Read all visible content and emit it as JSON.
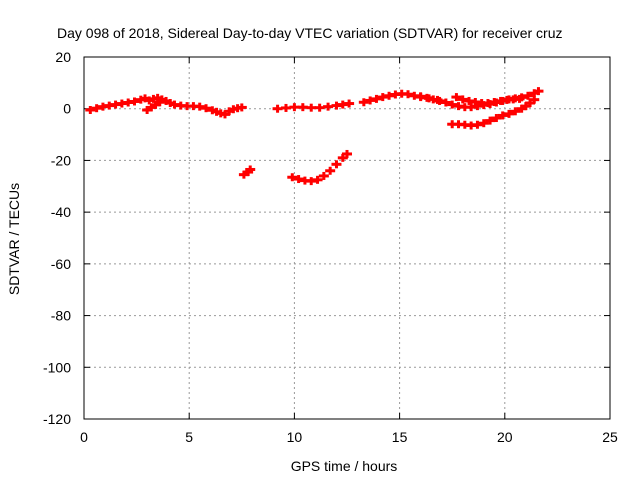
{
  "chart_data": {
    "type": "scatter",
    "title": "Day 098 of 2018, Sidereal Day-to-day VTEC variation (SDTVAR) for receiver cruz",
    "xlabel": "GPS time / hours",
    "ylabel": "SDTVAR / TECUs",
    "xlim": [
      0,
      25
    ],
    "ylim": [
      -120,
      20
    ],
    "xticks": [
      "0",
      "5",
      "10",
      "15",
      "20",
      "25"
    ],
    "yticks": [
      "20",
      "0",
      "-20",
      "-40",
      "-60",
      "-80",
      "-100",
      "-120"
    ],
    "grid": true,
    "marker_color": "#ff0000",
    "series": [
      {
        "points": [
          [
            0.3,
            -0.5
          ],
          [
            0.6,
            0.2
          ],
          [
            0.9,
            0.8
          ],
          [
            1.2,
            1.2
          ],
          [
            1.5,
            1.6
          ],
          [
            1.8,
            2.0
          ],
          [
            2.1,
            2.4
          ],
          [
            2.4,
            2.8
          ],
          [
            2.7,
            3.5
          ],
          [
            2.9,
            4.0
          ],
          [
            3.1,
            3.2
          ],
          [
            3.3,
            3.8
          ],
          [
            3.5,
            4.2
          ],
          [
            3.7,
            3.6
          ],
          [
            3.9,
            3.0
          ],
          [
            4.1,
            2.2
          ],
          [
            4.3,
            1.6
          ],
          [
            4.6,
            1.2
          ],
          [
            4.9,
            1.0
          ],
          [
            5.2,
            1.0
          ],
          [
            5.5,
            0.8
          ],
          [
            5.8,
            0.2
          ],
          [
            6.1,
            -0.6
          ],
          [
            6.3,
            -1.2
          ],
          [
            6.5,
            -1.8
          ],
          [
            6.7,
            -2.2
          ],
          [
            6.9,
            -1.0
          ],
          [
            7.1,
            -0.2
          ],
          [
            7.3,
            0.2
          ],
          [
            7.5,
            0.5
          ],
          [
            3.0,
            -0.5
          ],
          [
            3.2,
            0.5
          ],
          [
            3.4,
            1.5
          ],
          [
            3.6,
            2.5
          ],
          [
            7.6,
            -25.5
          ],
          [
            7.8,
            -24.5
          ],
          [
            7.9,
            -23.5
          ],
          [
            9.2,
            0.0
          ],
          [
            9.6,
            0.3
          ],
          [
            10.0,
            0.6
          ],
          [
            10.4,
            0.6
          ],
          [
            10.8,
            0.4
          ],
          [
            11.2,
            0.4
          ],
          [
            11.6,
            0.8
          ],
          [
            12.0,
            1.2
          ],
          [
            12.3,
            1.6
          ],
          [
            12.6,
            2.0
          ],
          [
            9.9,
            -26.5
          ],
          [
            10.2,
            -27.2
          ],
          [
            10.5,
            -27.8
          ],
          [
            10.8,
            -28.0
          ],
          [
            11.1,
            -27.5
          ],
          [
            11.4,
            -26.0
          ],
          [
            11.7,
            -24.0
          ],
          [
            12.0,
            -21.5
          ],
          [
            12.3,
            -19.0
          ],
          [
            12.5,
            -17.5
          ],
          [
            13.3,
            2.5
          ],
          [
            13.6,
            3.2
          ],
          [
            13.9,
            3.8
          ],
          [
            14.2,
            4.5
          ],
          [
            14.5,
            5.0
          ],
          [
            14.8,
            5.5
          ],
          [
            15.1,
            5.8
          ],
          [
            15.4,
            5.6
          ],
          [
            15.7,
            5.0
          ],
          [
            16.0,
            4.5
          ],
          [
            16.3,
            4.2
          ],
          [
            16.6,
            3.6
          ],
          [
            16.9,
            3.0
          ],
          [
            17.2,
            2.4
          ],
          [
            17.5,
            1.6
          ],
          [
            17.8,
            1.0
          ],
          [
            18.1,
            0.6
          ],
          [
            18.4,
            0.6
          ],
          [
            18.7,
            1.0
          ],
          [
            19.0,
            1.4
          ],
          [
            19.3,
            1.8
          ],
          [
            19.6,
            2.4
          ],
          [
            19.9,
            3.0
          ],
          [
            20.2,
            3.6
          ],
          [
            20.5,
            4.0
          ],
          [
            20.8,
            4.4
          ],
          [
            21.1,
            5.0
          ],
          [
            21.4,
            6.0
          ],
          [
            21.6,
            6.8
          ],
          [
            17.7,
            4.5
          ],
          [
            18.0,
            3.6
          ],
          [
            18.3,
            3.0
          ],
          [
            18.6,
            2.6
          ],
          [
            18.9,
            2.2
          ],
          [
            19.2,
            2.2
          ],
          [
            19.5,
            2.6
          ],
          [
            19.8,
            3.0
          ],
          [
            20.1,
            3.4
          ],
          [
            20.4,
            3.6
          ],
          [
            20.7,
            3.8
          ],
          [
            17.5,
            -6.0
          ],
          [
            17.8,
            -6.0
          ],
          [
            18.1,
            -6.2
          ],
          [
            18.4,
            -6.5
          ],
          [
            18.7,
            -6.2
          ],
          [
            19.0,
            -5.6
          ],
          [
            19.3,
            -4.6
          ],
          [
            19.6,
            -3.6
          ],
          [
            19.9,
            -2.6
          ],
          [
            20.2,
            -2.0
          ],
          [
            20.5,
            -1.0
          ],
          [
            20.8,
            0.0
          ],
          [
            21.0,
            1.0
          ],
          [
            21.2,
            2.2
          ],
          [
            21.4,
            3.5
          ],
          [
            16.0,
            4.8
          ],
          [
            16.4,
            4.0
          ],
          [
            16.8,
            3.4
          ]
        ]
      }
    ]
  }
}
